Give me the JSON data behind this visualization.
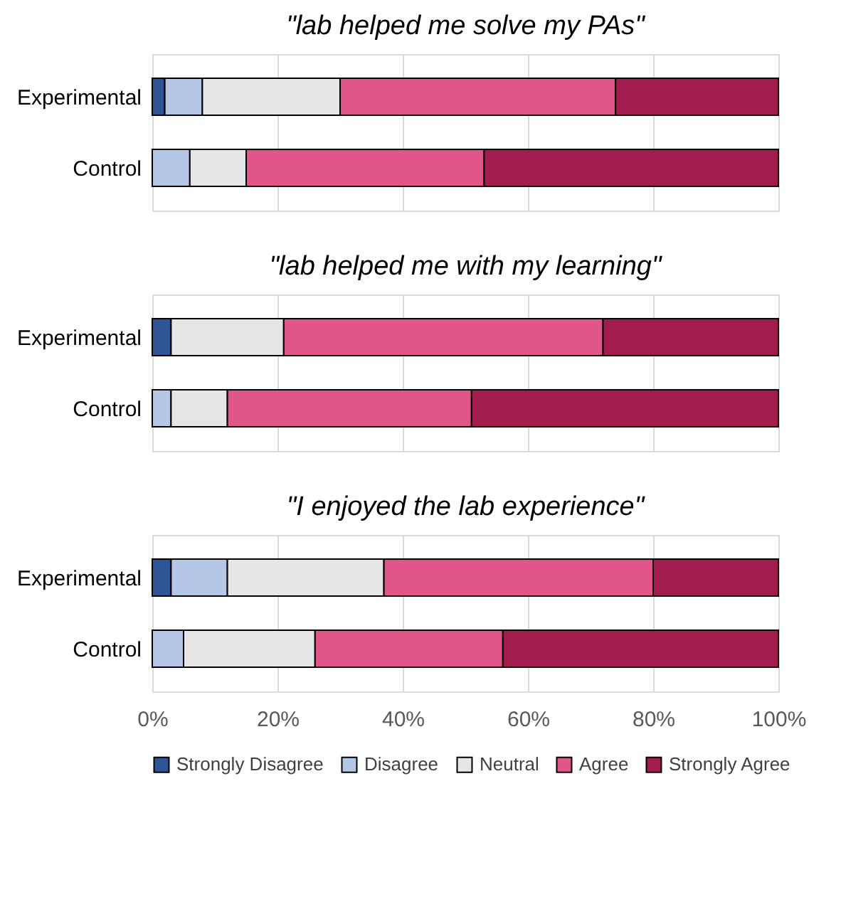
{
  "chart_data": [
    {
      "type": "bar",
      "orientation": "horizontal",
      "stacked": true,
      "title": "\"lab helped me solve my PAs\"",
      "categories": [
        "Experimental",
        "Control"
      ],
      "xlim": [
        0,
        100
      ],
      "xticks": [
        0,
        20,
        40,
        60,
        80,
        100
      ],
      "tick_labels": "y",
      "grid": "x",
      "series": [
        {
          "color": "#2f5597",
          "values": [
            2,
            0
          ]
        },
        {
          "color": "#b4c7e7",
          "values": [
            6,
            6
          ]
        },
        {
          "color": "#e7e6e6",
          "values": [
            22,
            9
          ]
        },
        {
          "color": "#e0568b",
          "values": [
            44,
            38
          ]
        },
        {
          "color": "#a21c4f",
          "values": [
            26,
            47
          ]
        }
      ]
    },
    {
      "type": "bar",
      "orientation": "horizontal",
      "stacked": true,
      "title": "\"lab helped me with my learning\"",
      "categories": [
        "Experimental",
        "Control"
      ],
      "xlim": [
        0,
        100
      ],
      "xticks": [
        0,
        20,
        40,
        60,
        80,
        100
      ],
      "tick_labels": "y",
      "grid": "x",
      "series": [
        {
          "color": "#2f5597",
          "values": [
            3,
            0
          ]
        },
        {
          "color": "#b4c7e7",
          "values": [
            0,
            3
          ]
        },
        {
          "color": "#e7e6e6",
          "values": [
            18,
            9
          ]
        },
        {
          "color": "#e0568b",
          "values": [
            51,
            39
          ]
        },
        {
          "color": "#a21c4f",
          "values": [
            28,
            49
          ]
        }
      ]
    },
    {
      "type": "bar",
      "orientation": "horizontal",
      "stacked": true,
      "title": "\"I enjoyed the lab experience\"",
      "categories": [
        "Experimental",
        "Control"
      ],
      "xlim": [
        0,
        100
      ],
      "xticks": [
        {
          "value": 0,
          "label": "0%"
        },
        {
          "value": 20,
          "label": "20%"
        },
        {
          "value": 40,
          "label": "40%"
        },
        {
          "value": 60,
          "label": "60%"
        },
        {
          "value": 80,
          "label": "80%"
        },
        {
          "value": 100,
          "label": "100%"
        }
      ],
      "grid": "x",
      "legend": "bottom",
      "series": [
        {
          "name": "Strongly Disagree",
          "color": "#2f5597",
          "values": [
            3,
            0
          ]
        },
        {
          "name": "Disagree",
          "color": "#b4c7e7",
          "values": [
            9,
            5
          ]
        },
        {
          "name": "Neutral",
          "color": "#e7e6e6",
          "values": [
            25,
            21
          ]
        },
        {
          "name": "Agree",
          "color": "#e0568b",
          "values": [
            43,
            30
          ]
        },
        {
          "name": "Strongly Agree",
          "color": "#a21c4f",
          "values": [
            20,
            44
          ]
        }
      ]
    }
  ]
}
